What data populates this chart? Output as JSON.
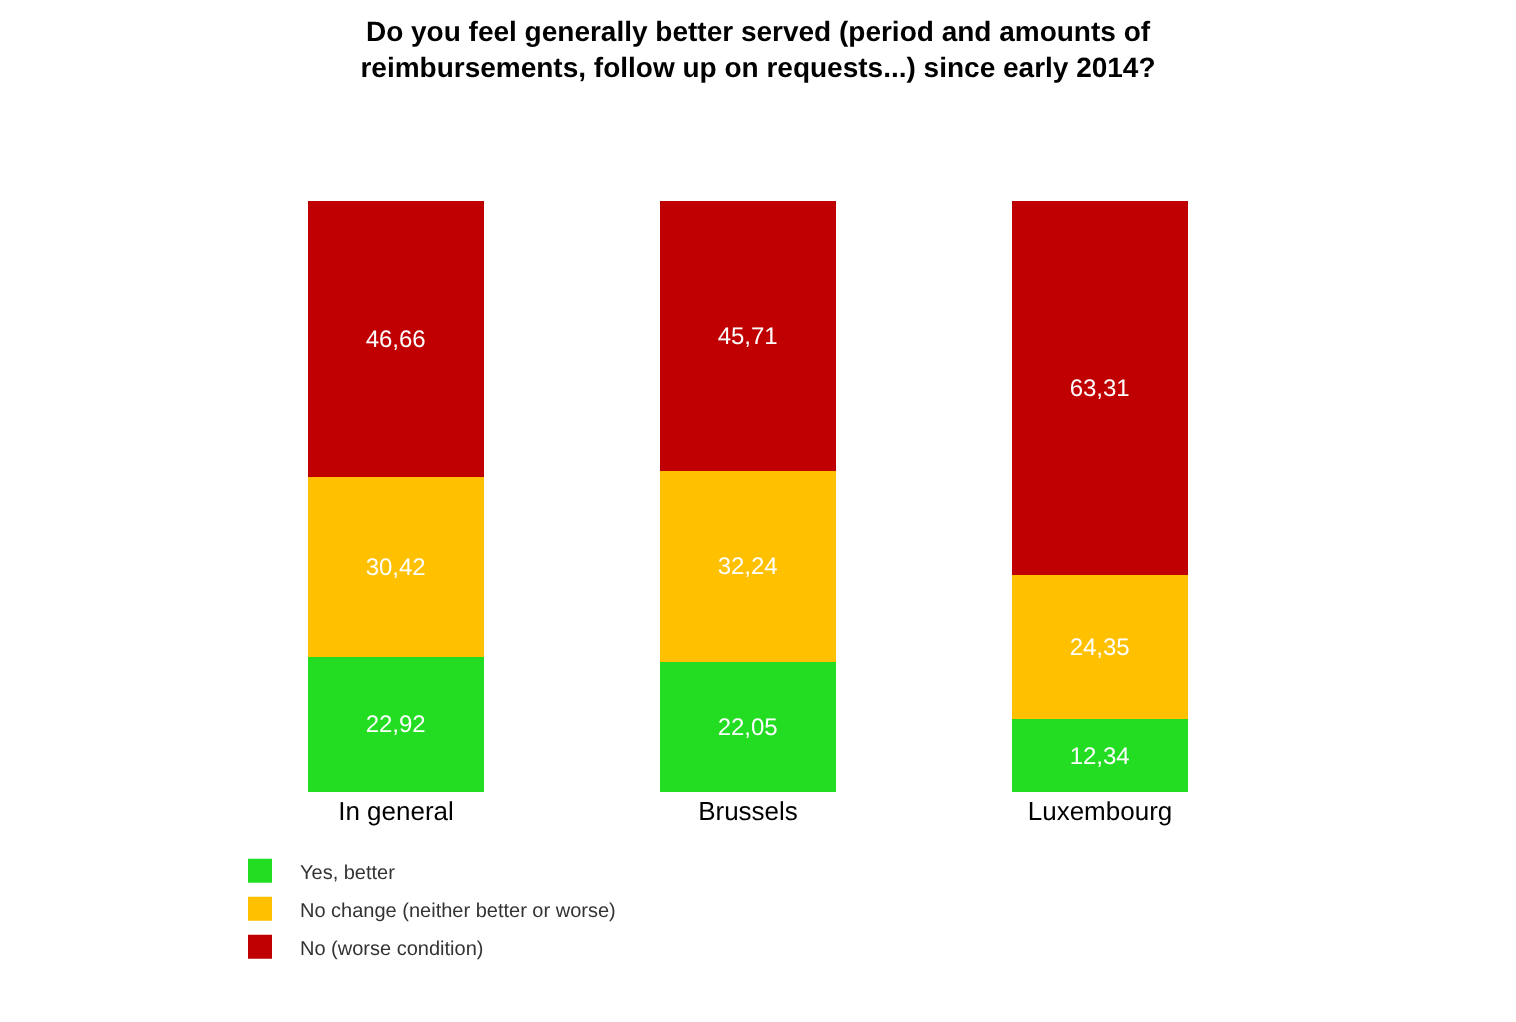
{
  "chart_data": {
    "type": "bar",
    "stacked": true,
    "title": "Do you feel generally better served (period and amounts of\nreimbursements, follow up on requests...) since early 2014?",
    "categories": [
      "In general",
      "Brussels",
      "Luxembourg"
    ],
    "series": [
      {
        "name": "Yes, better",
        "color": "#22dd22",
        "values": [
          22.92,
          22.05,
          12.34
        ],
        "value_labels": [
          "22,92",
          "22,05",
          "12,34"
        ]
      },
      {
        "name": "No change (neither better or worse)",
        "color": "#ffc000",
        "values": [
          30.42,
          32.24,
          24.35
        ],
        "value_labels": [
          "30,42",
          "32,24",
          "24,35"
        ]
      },
      {
        "name": "No (worse condition)",
        "color": "#c00000",
        "values": [
          46.66,
          45.71,
          63.31
        ],
        "value_labels": [
          "46,66",
          "45,71",
          "63,31"
        ]
      }
    ],
    "legend": "bottom left",
    "tick_labels": "x"
  }
}
